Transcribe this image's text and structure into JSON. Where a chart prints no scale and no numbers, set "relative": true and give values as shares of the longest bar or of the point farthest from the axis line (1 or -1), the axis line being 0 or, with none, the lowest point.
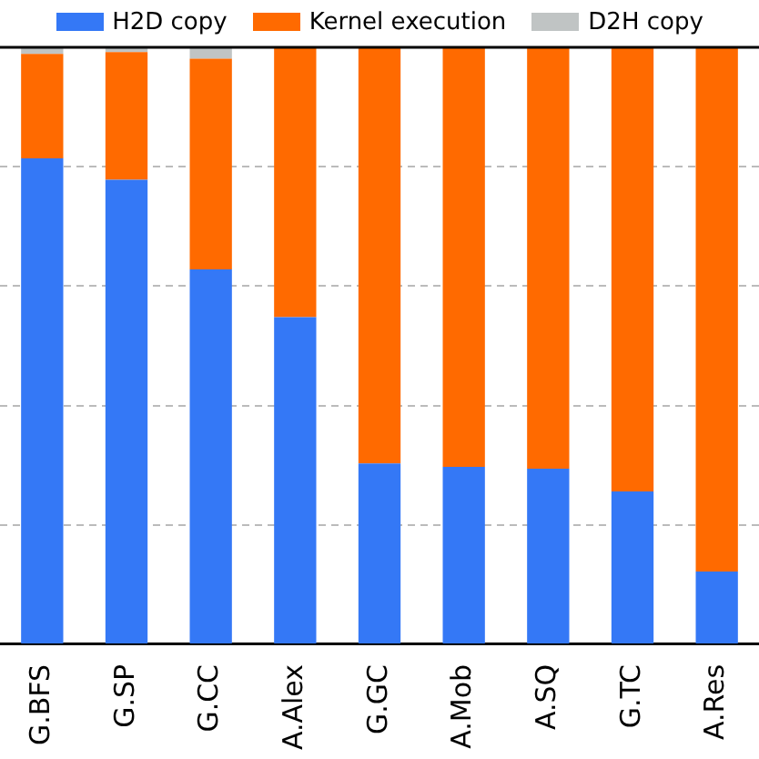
{
  "chart_data": {
    "type": "bar",
    "stacked": true,
    "relative": true,
    "grid": "y",
    "legend": "top",
    "categories": [
      "G.BFS",
      "G.SP",
      "G.CC",
      "A.Alex",
      "G.GC",
      "A.Mob",
      "A.SQ",
      "G.TC",
      "A.Res"
    ],
    "series": [
      {
        "name": "H2D copy",
        "color": "#3478f6",
        "values": [
          0.814,
          0.778,
          0.628,
          0.548,
          0.303,
          0.297,
          0.294,
          0.256,
          0.122
        ]
      },
      {
        "name": "Kernel execution",
        "color": "#ff6a00",
        "values": [
          0.175,
          0.214,
          0.353,
          0.452,
          0.697,
          0.703,
          0.706,
          0.744,
          0.878
        ]
      },
      {
        "name": "D2H copy",
        "color": "#c0c4c4",
        "values": [
          0.011,
          0.008,
          0.019,
          0,
          0,
          0,
          0,
          0,
          0
        ]
      }
    ]
  }
}
